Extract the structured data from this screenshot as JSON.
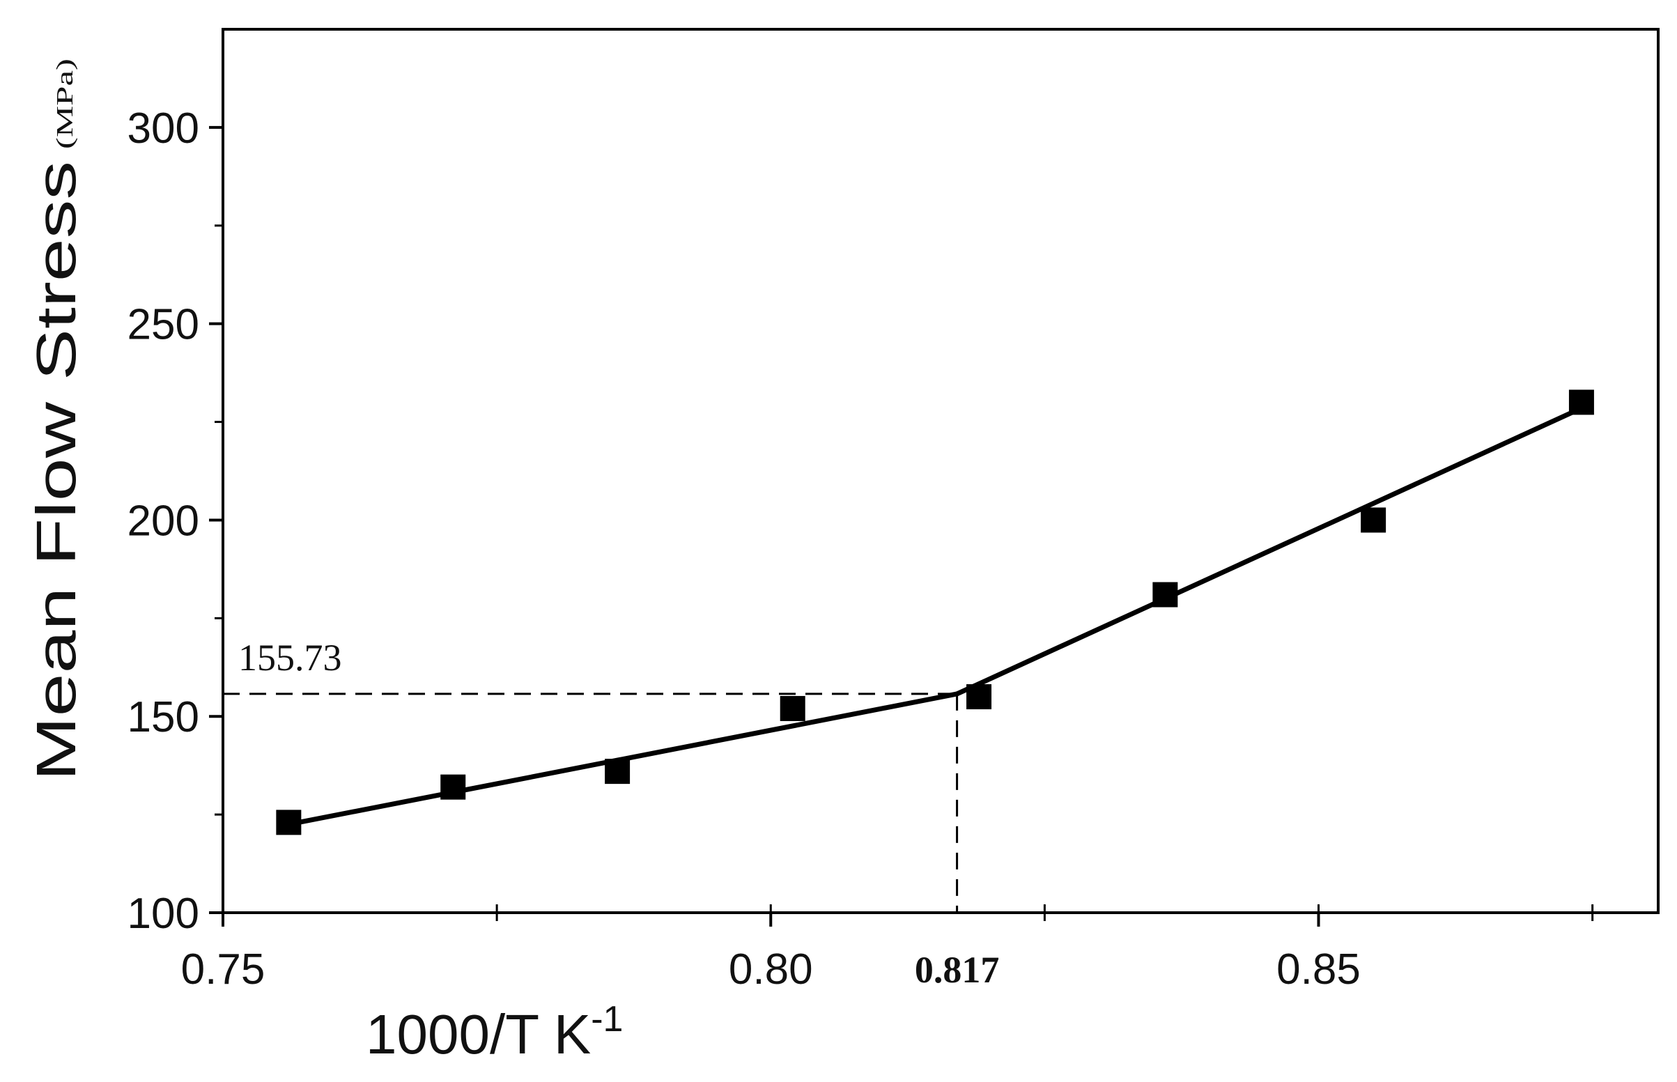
{
  "chart_data": {
    "type": "line",
    "xlabel": "1000/T  K",
    "xlabel_superscript": "-1",
    "ylabel": "Mean Flow Stress",
    "ylabel_unit": "(MPa)",
    "xlim": [
      0.75,
      0.881
    ],
    "ylim": [
      100,
      325
    ],
    "x_ticks": [
      0.75,
      0.8,
      0.85
    ],
    "x_tick_labels": [
      "0.75",
      "0.80",
      "0.85"
    ],
    "x_minor_ticks": [
      0.775,
      0.825,
      0.875
    ],
    "x_extra_tick": 0.817,
    "x_extra_tick_label": "0.817",
    "y_ticks": [
      100,
      150,
      200,
      250,
      300
    ],
    "y_tick_labels": [
      "100",
      "150",
      "200",
      "250",
      "300"
    ],
    "y_minor_ticks": [
      125,
      175,
      225,
      275
    ],
    "grid": false,
    "series": [
      {
        "marker": "square",
        "x": [
          0.756,
          0.771,
          0.786,
          0.802,
          0.819,
          0.836,
          0.855,
          0.874
        ],
        "y": [
          123,
          132,
          136,
          152,
          155,
          181,
          200,
          230
        ]
      }
    ],
    "fit_lines": [
      {
        "x": [
          0.756,
          0.817
        ],
        "y": [
          122.5,
          155.73
        ]
      },
      {
        "x": [
          0.817,
          0.874
        ],
        "y": [
          155.73,
          228.5
        ]
      }
    ],
    "annotation": {
      "x": 0.817,
      "y": 155.73,
      "label": "155.73",
      "style": "dashed"
    },
    "colors": {
      "ink": "#000000"
    }
  }
}
